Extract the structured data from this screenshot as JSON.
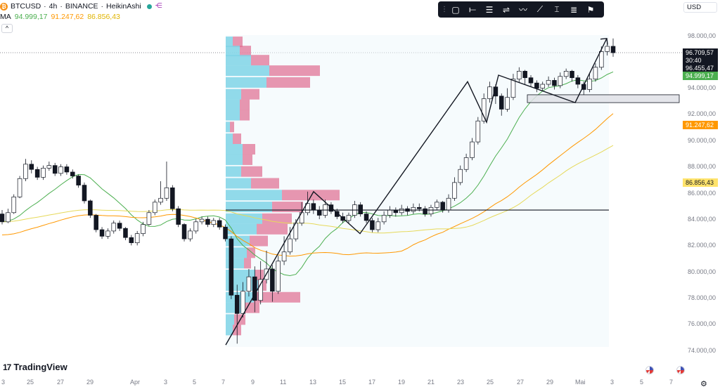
{
  "legend": {
    "symbol": "BTCUSD",
    "interval": "4h",
    "exchange": "BINANCE",
    "chart_style": "HeikinAshi",
    "separator": "·",
    "coin_glyph": "₿",
    "share_glyph": "⋲"
  },
  "moving_averages": {
    "label": "MA",
    "values": [
      "94.999,17",
      "91.247,62",
      "86.856,43"
    ],
    "colors": [
      "#4caf50",
      "#ff9800",
      "#e0b400"
    ]
  },
  "collapse_glyph": "^",
  "toolbar": {
    "grip": "⋮",
    "tools": [
      {
        "name": "rectangle-tool",
        "glyph": "▢"
      },
      {
        "name": "ray-tool",
        "glyph": "⟝"
      },
      {
        "name": "parallel-channel-tool",
        "glyph": "☰"
      },
      {
        "name": "regression-tool",
        "glyph": "⇌"
      },
      {
        "name": "pattern-tool",
        "glyph": "〰"
      },
      {
        "name": "trend-line-tool",
        "glyph": "⟋"
      },
      {
        "name": "price-range-tool",
        "glyph": "⌶"
      },
      {
        "name": "fib-tool",
        "glyph": "≣"
      },
      {
        "name": "flag-tool",
        "glyph": "⚑"
      }
    ]
  },
  "currency": "USD",
  "price_axis": {
    "ticks": [
      "98.000,00",
      "94.000,00",
      "92.000,00",
      "90.000,00",
      "88.000,00",
      "86.000,00",
      "84.000,00",
      "82.000,00",
      "80.000,00",
      "78.000,00",
      "76.000,00",
      "74.000,00"
    ],
    "current_price": "96.709,57",
    "countdown": "30:40",
    "crosshair_price": "96.455,47",
    "ma_tags": [
      "94.999,17",
      "91.247,62",
      "86.856,43"
    ]
  },
  "time_axis": {
    "ticks": [
      "3",
      "25",
      "27",
      "29",
      "Apr",
      "3",
      "5",
      "7",
      "9",
      "11",
      "13",
      "15",
      "17",
      "19",
      "21",
      "23",
      "25",
      "27",
      "29",
      "Mai",
      "3",
      "5",
      "7"
    ]
  },
  "branding": {
    "name": "TradingView",
    "mark": "17"
  },
  "colors": {
    "up": "#131722",
    "down": "#131722",
    "vp_up": "#7fd4e6",
    "vp_down": "#e06b8f",
    "ma_fast": "#4caf50",
    "ma_mid": "#ff9800",
    "ma_slow": "#e6d95a"
  },
  "chart_data": {
    "type": "candlestick",
    "y_range": [
      74000,
      99000
    ],
    "moving_average_last": [
      94999.17,
      91247.62,
      86856.43
    ],
    "horizontal_line": 84700,
    "zone": [
      92900,
      93500
    ],
    "zigzag": [
      {
        "date": "Apr 7",
        "price": 74400
      },
      {
        "date": "Apr 13",
        "price": 86100
      },
      {
        "date": "Apr 16",
        "price": 82900
      },
      {
        "date": "Apr 23",
        "price": 94500
      },
      {
        "date": "Apr 24",
        "price": 91400
      },
      {
        "date": "Apr 25",
        "price": 95000
      },
      {
        "date": "May 1",
        "price": 92900
      },
      {
        "date": "May 2",
        "price": 97800
      }
    ],
    "candles": [
      [
        84400,
        83800,
        84700,
        83600
      ],
      [
        83800,
        84500,
        84800,
        83700
      ],
      [
        84500,
        85700,
        85900,
        84400
      ],
      [
        85700,
        87100,
        87300,
        85600
      ],
      [
        87100,
        88200,
        88600,
        86900
      ],
      [
        88200,
        87800,
        88500,
        87500
      ],
      [
        87800,
        87200,
        88000,
        87000
      ],
      [
        87200,
        87900,
        88100,
        87000
      ],
      [
        87900,
        88100,
        88400,
        87700
      ],
      [
        88100,
        87500,
        88300,
        87300
      ],
      [
        87500,
        88000,
        88200,
        87300
      ],
      [
        88000,
        87600,
        88200,
        87400
      ],
      [
        87600,
        87300,
        87800,
        87100
      ],
      [
        87300,
        86600,
        87400,
        86400
      ],
      [
        86600,
        85400,
        86800,
        85200
      ],
      [
        85400,
        84300,
        85500,
        84100
      ],
      [
        84300,
        83200,
        84400,
        83000
      ],
      [
        83200,
        82700,
        83400,
        82500
      ],
      [
        82700,
        83100,
        83300,
        82500
      ],
      [
        83100,
        83700,
        83900,
        82900
      ],
      [
        83700,
        83300,
        83900,
        83100
      ],
      [
        83300,
        82600,
        83400,
        82400
      ],
      [
        82600,
        82200,
        82800,
        82000
      ],
      [
        82200,
        82900,
        83100,
        82000
      ],
      [
        82900,
        83600,
        83800,
        82700
      ],
      [
        83600,
        84500,
        84700,
        83500
      ],
      [
        84500,
        85300,
        85500,
        84300
      ],
      [
        85300,
        85600,
        86900,
        85100
      ],
      [
        85600,
        86400,
        88400,
        85400
      ],
      [
        86400,
        84800,
        86600,
        84600
      ],
      [
        84800,
        83600,
        85000,
        83400
      ],
      [
        83600,
        82500,
        83700,
        82300
      ],
      [
        82500,
        83100,
        83300,
        82300
      ],
      [
        83100,
        83800,
        84000,
        82900
      ],
      [
        83800,
        84000,
        84200,
        83600
      ],
      [
        84000,
        83600,
        84200,
        83400
      ],
      [
        83600,
        83900,
        84100,
        83400
      ],
      [
        83900,
        83400,
        84100,
        83200
      ],
      [
        83400,
        82500,
        83600,
        82300
      ],
      [
        82500,
        78200,
        82700,
        77900
      ],
      [
        78200,
        76800,
        79000,
        74500
      ],
      [
        76800,
        78500,
        79200,
        76500
      ],
      [
        78500,
        79600,
        80200,
        78100
      ],
      [
        79600,
        77800,
        80400,
        76900
      ],
      [
        77800,
        79400,
        80800,
        77500
      ],
      [
        79400,
        80200,
        81600,
        79100
      ],
      [
        80200,
        78500,
        80500,
        77700
      ],
      [
        78500,
        80800,
        81200,
        78300
      ],
      [
        80800,
        81500,
        82700,
        80500
      ],
      [
        81500,
        82500,
        83400,
        81300
      ],
      [
        82500,
        83700,
        84000,
        82300
      ],
      [
        83700,
        84500,
        85300,
        83500
      ],
      [
        84500,
        85200,
        86100,
        84300
      ],
      [
        85200,
        84700,
        85500,
        84400
      ],
      [
        84700,
        84300,
        85000,
        84000
      ],
      [
        84300,
        85100,
        85500,
        84100
      ],
      [
        85100,
        84600,
        85300,
        84400
      ],
      [
        84600,
        84200,
        84800,
        84000
      ],
      [
        84200,
        83900,
        84500,
        83700
      ],
      [
        83900,
        84300,
        84500,
        83700
      ],
      [
        84300,
        85100,
        85400,
        84100
      ],
      [
        85100,
        84400,
        85300,
        84200
      ],
      [
        84400,
        83900,
        84600,
        83700
      ],
      [
        83900,
        83200,
        84100,
        83000
      ],
      [
        83200,
        83800,
        84100,
        83000
      ],
      [
        83800,
        84300,
        84600,
        83600
      ],
      [
        84300,
        84700,
        85000,
        84100
      ],
      [
        84700,
        84500,
        84900,
        84200
      ],
      [
        84500,
        84800,
        85100,
        84300
      ],
      [
        84800,
        84600,
        85000,
        84300
      ],
      [
        84600,
        84900,
        85200,
        84400
      ],
      [
        84900,
        84800,
        85200,
        84600
      ],
      [
        84800,
        84400,
        85000,
        84200
      ],
      [
        84400,
        84900,
        85100,
        84200
      ],
      [
        84900,
        85300,
        85500,
        84700
      ],
      [
        85300,
        84700,
        85400,
        84500
      ],
      [
        84700,
        85600,
        85900,
        84500
      ],
      [
        85600,
        86800,
        87200,
        85400
      ],
      [
        86800,
        87800,
        88100,
        86600
      ],
      [
        87800,
        88700,
        89000,
        87600
      ],
      [
        88700,
        89900,
        90200,
        88500
      ],
      [
        89900,
        91500,
        91800,
        89700
      ],
      [
        91500,
        93200,
        93600,
        91300
      ],
      [
        93200,
        94100,
        94500,
        92900
      ],
      [
        94100,
        93400,
        94300,
        92800
      ],
      [
        93400,
        92400,
        93600,
        91900
      ],
      [
        92400,
        93300,
        94000,
        92200
      ],
      [
        93300,
        94700,
        95100,
        93100
      ],
      [
        94700,
        95300,
        95600,
        94400
      ],
      [
        95300,
        94800,
        95400,
        94300
      ],
      [
        94800,
        94400,
        95000,
        94100
      ],
      [
        94400,
        94000,
        94600,
        93700
      ],
      [
        94000,
        94300,
        94500,
        93800
      ],
      [
        94300,
        94600,
        94900,
        94100
      ],
      [
        94600,
        94200,
        94800,
        93900
      ],
      [
        94200,
        94900,
        95200,
        94000
      ],
      [
        94900,
        95300,
        95500,
        94700
      ],
      [
        95300,
        94800,
        95400,
        94500
      ],
      [
        94800,
        94300,
        95000,
        94000
      ],
      [
        94300,
        93900,
        94500,
        93500
      ],
      [
        93900,
        94700,
        95100,
        93700
      ],
      [
        94700,
        95600,
        95900,
        94500
      ],
      [
        95600,
        96800,
        97200,
        95400
      ],
      [
        96800,
        97200,
        97600,
        96500
      ],
      [
        97200,
        96710,
        97800,
        96400
      ]
    ],
    "volume_profile": [
      {
        "price": 97500,
        "up": 10,
        "down": 14
      },
      {
        "price": 96800,
        "up": 20,
        "down": 16
      },
      {
        "price": 96100,
        "up": 36,
        "down": 26
      },
      {
        "price": 95300,
        "up": 62,
        "down": 72
      },
      {
        "price": 94400,
        "up": 58,
        "down": 62
      },
      {
        "price": 93500,
        "up": 22,
        "down": 26
      },
      {
        "price": 92700,
        "up": 20,
        "down": 14
      },
      {
        "price": 91900,
        "up": 20,
        "down": 14
      },
      {
        "price": 91000,
        "up": 6,
        "down": 6
      },
      {
        "price": 90100,
        "up": 10,
        "down": 12
      },
      {
        "price": 89300,
        "up": 24,
        "down": 18
      },
      {
        "price": 88500,
        "up": 24,
        "down": 14
      },
      {
        "price": 87600,
        "up": 22,
        "down": 30
      },
      {
        "price": 86700,
        "up": 36,
        "down": 40
      },
      {
        "price": 85800,
        "up": 80,
        "down": 82
      },
      {
        "price": 84900,
        "up": 66,
        "down": 44
      },
      {
        "price": 84000,
        "up": 52,
        "down": 42
      },
      {
        "price": 83200,
        "up": 44,
        "down": 44
      },
      {
        "price": 82300,
        "up": 34,
        "down": 26
      },
      {
        "price": 81400,
        "up": 30,
        "down": 12
      },
      {
        "price": 80600,
        "up": 26,
        "down": 10
      },
      {
        "price": 79700,
        "up": 42,
        "down": 12
      },
      {
        "price": 78900,
        "up": 46,
        "down": 12
      },
      {
        "price": 78000,
        "up": 40,
        "down": 66
      },
      {
        "price": 77200,
        "up": 26,
        "down": 22
      },
      {
        "price": 76300,
        "up": 12,
        "down": 16
      },
      {
        "price": 75500,
        "up": 10,
        "down": 12
      }
    ]
  }
}
